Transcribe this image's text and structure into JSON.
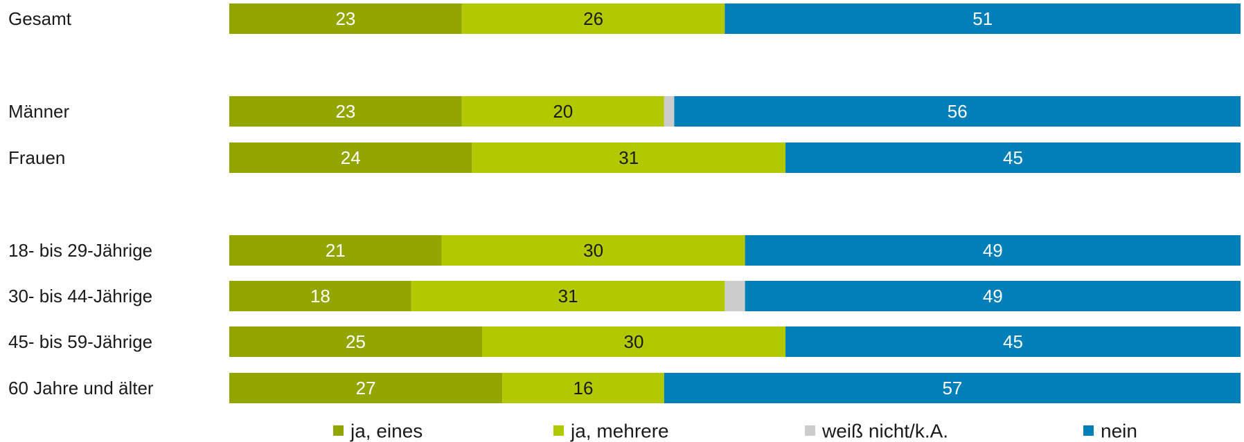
{
  "chart_data": {
    "type": "bar",
    "orientation": "horizontal",
    "stacked": true,
    "xlim": [
      0,
      100
    ],
    "grid": false,
    "legend_placement": "bottom",
    "rows": [
      {
        "label": "Gesamt",
        "values": [
          23,
          26,
          0,
          51
        ],
        "value_labels": [
          "23",
          "26",
          "",
          "51"
        ]
      },
      {
        "label": "Männer",
        "values": [
          23,
          20,
          1,
          56
        ],
        "value_labels": [
          "23",
          "20",
          "",
          "56"
        ]
      },
      {
        "label": "Frauen",
        "values": [
          24,
          31,
          0,
          45
        ],
        "value_labels": [
          "24",
          "31",
          "",
          "45"
        ]
      },
      {
        "label": "18- bis 29-Jährige",
        "values": [
          21,
          30,
          0,
          49
        ],
        "value_labels": [
          "21",
          "30",
          "",
          "49"
        ]
      },
      {
        "label": "30- bis 44-Jährige",
        "values": [
          18,
          31,
          2,
          49
        ],
        "value_labels": [
          "18",
          "31",
          "",
          "49"
        ]
      },
      {
        "label": "45- bis 59-Jährige",
        "values": [
          25,
          30,
          0,
          45
        ],
        "value_labels": [
          "25",
          "30",
          "",
          "45"
        ]
      },
      {
        "label": "60 Jahre und älter",
        "values": [
          27,
          16,
          0,
          57
        ],
        "value_labels": [
          "27",
          "16",
          "",
          "57"
        ]
      }
    ],
    "series": [
      {
        "name": "ja, eines",
        "color": "#93a600",
        "label_color": "#ffffff"
      },
      {
        "name": "ja, mehrere",
        "color": "#b2c800",
        "label_color": "#1a1a1a"
      },
      {
        "name": "weiß nicht/k.A.",
        "color": "#cccccc",
        "label_color": "#1a1a1a"
      },
      {
        "name": "nein",
        "color": "#007fb9",
        "label_color": "#ffffff"
      }
    ]
  }
}
